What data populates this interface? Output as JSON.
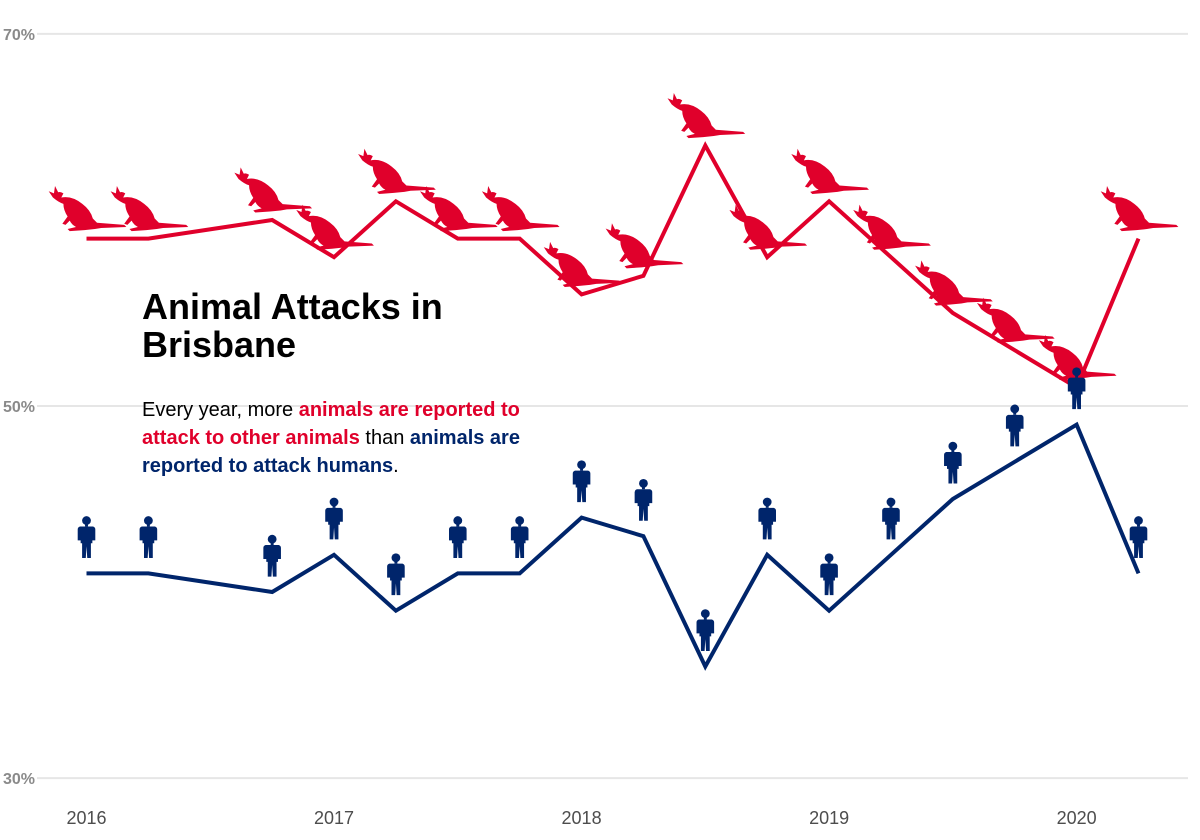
{
  "colors": {
    "animals": "#E0002B",
    "humans": "#00256B",
    "grid": "#e6e6e6",
    "text": "#000000"
  },
  "title": "Animal Attacks in Brisbane",
  "subtitle": {
    "part1": "Every year, more ",
    "highlight_animals": "animals are reported to attack to other animals",
    "part2": " than ",
    "highlight_humans": "animals are reported to attack humans",
    "part3": "."
  },
  "chart_data": {
    "type": "line",
    "grid": true,
    "xlim": [
      2015.8,
      2020.45
    ],
    "ylim": [
      28.5,
      71.5
    ],
    "yticks": [
      30,
      50,
      70
    ],
    "ytick_labels": [
      "30%",
      "50%",
      "70%"
    ],
    "xticks": [
      2016,
      2017,
      2018,
      2019,
      2020
    ],
    "xtick_labels": [
      "2016",
      "2017",
      "2018",
      "2019",
      "2020"
    ],
    "series": [
      {
        "key": "animals",
        "icon": "kangaroo-icon",
        "x": [
          2016,
          2016.25,
          2016.75,
          2017,
          2017.25,
          2017.5,
          2017.75,
          2018,
          2018.25,
          2018.5,
          2018.75,
          2019,
          2019.25,
          2019.5,
          2019.75,
          2020,
          2020.25
        ],
        "values": [
          59,
          59,
          60,
          58,
          61,
          59,
          59,
          56,
          57,
          64,
          58,
          61,
          58,
          55,
          53,
          51,
          59
        ]
      },
      {
        "key": "humans",
        "icon": "person-icon",
        "x": [
          2016,
          2016.25,
          2016.75,
          2017,
          2017.25,
          2017.5,
          2017.75,
          2018,
          2018.25,
          2018.5,
          2018.75,
          2019,
          2019.25,
          2019.5,
          2019.75,
          2020,
          2020.25
        ],
        "values": [
          41,
          41,
          40,
          42,
          39,
          41,
          41,
          44,
          43,
          36,
          42,
          39,
          42,
          45,
          47,
          49,
          41
        ]
      }
    ]
  }
}
